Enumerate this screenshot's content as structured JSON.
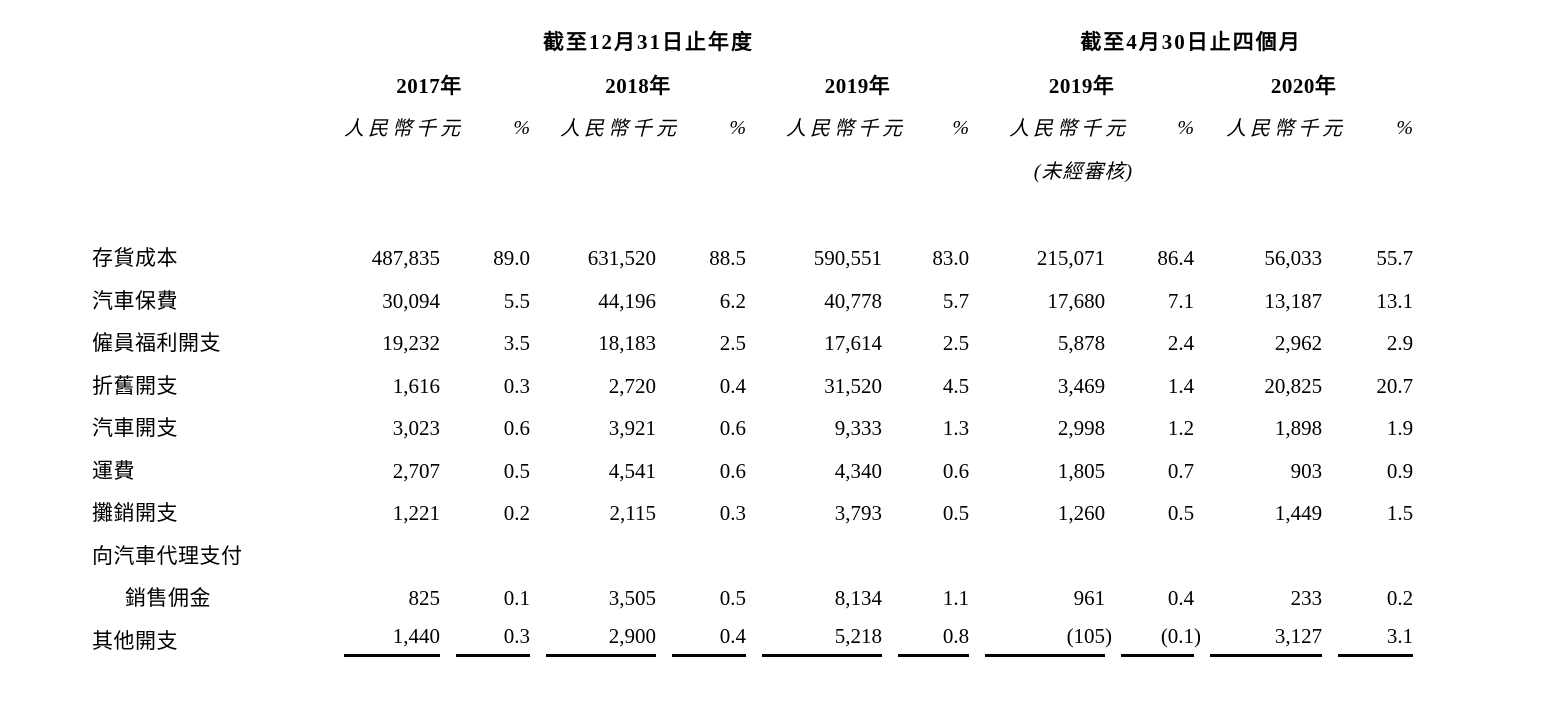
{
  "page": {
    "background": "#ffffff",
    "text_color": "#000000"
  },
  "table": {
    "group_headers": [
      {
        "label": "截至12月31日止年度"
      },
      {
        "label": "截至4月30日止四個月"
      }
    ],
    "year_headers": [
      "2017年",
      "2018年",
      "2019年",
      "2019年",
      "2020年"
    ],
    "unit_label": "人民幣千元",
    "percent_symbol": "%",
    "unaudited_note": "(未經審核)",
    "rows": [
      {
        "label": "存貨成本",
        "values": [
          "487,835",
          "89.0",
          "631,520",
          "88.5",
          "590,551",
          "83.0",
          "215,071",
          "86.4",
          "56,033",
          "55.7"
        ]
      },
      {
        "label": "汽車保費",
        "values": [
          "30,094",
          "5.5",
          "44,196",
          "6.2",
          "40,778",
          "5.7",
          "17,680",
          "7.1",
          "13,187",
          "13.1"
        ]
      },
      {
        "label": "僱員福利開支",
        "values": [
          "19,232",
          "3.5",
          "18,183",
          "2.5",
          "17,614",
          "2.5",
          "5,878",
          "2.4",
          "2,962",
          "2.9"
        ]
      },
      {
        "label": "折舊開支",
        "values": [
          "1,616",
          "0.3",
          "2,720",
          "0.4",
          "31,520",
          "4.5",
          "3,469",
          "1.4",
          "20,825",
          "20.7"
        ]
      },
      {
        "label": "汽車開支",
        "values": [
          "3,023",
          "0.6",
          "3,921",
          "0.6",
          "9,333",
          "1.3",
          "2,998",
          "1.2",
          "1,898",
          "1.9"
        ]
      },
      {
        "label": "運費",
        "values": [
          "2,707",
          "0.5",
          "4,541",
          "0.6",
          "4,340",
          "0.6",
          "1,805",
          "0.7",
          "903",
          "0.9"
        ]
      },
      {
        "label": "攤銷開支",
        "values": [
          "1,221",
          "0.2",
          "2,115",
          "0.3",
          "3,793",
          "0.5",
          "1,260",
          "0.5",
          "1,449",
          "1.5"
        ]
      },
      {
        "label": "向汽車代理支付",
        "values": [
          "",
          "",
          "",
          "",
          "",
          "",
          "",
          "",
          "",
          ""
        ]
      },
      {
        "label": "銷售佣金",
        "indent": true,
        "values": [
          "825",
          "0.1",
          "3,505",
          "0.5",
          "8,134",
          "1.1",
          "961",
          "0.4",
          "233",
          "0.2"
        ]
      },
      {
        "label": "其他開支",
        "underline": true,
        "values": [
          "1,440",
          "0.3",
          "2,900",
          "0.4",
          "5,218",
          "0.8",
          "(105)",
          "(0.1)",
          "3,127",
          "3.1"
        ]
      }
    ]
  }
}
